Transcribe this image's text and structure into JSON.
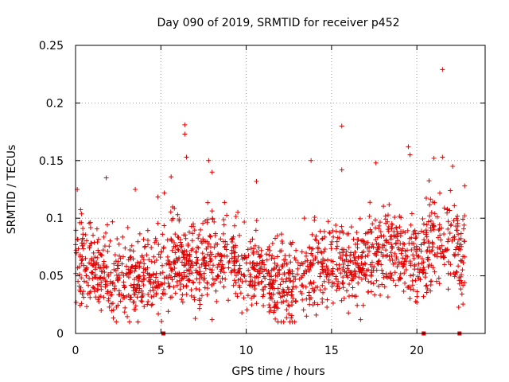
{
  "chart_data": {
    "type": "scatter",
    "title": "Day 090 of 2019, SRMTID for receiver p452",
    "xlabel": "GPS time / hours",
    "ylabel": "SRMTID / TECUs",
    "xlim": [
      0,
      24
    ],
    "ylim": [
      0,
      0.25
    ],
    "xticks": [
      0,
      5,
      10,
      15,
      20
    ],
    "xtick_labels": [
      "0",
      "5",
      "10",
      "15",
      "20"
    ],
    "yticks": [
      0,
      0.05,
      0.1,
      0.15,
      0.2,
      0.25
    ],
    "ytick_labels": [
      "0",
      "0.05",
      "0.1",
      "0.15",
      "0.2",
      "0.25"
    ],
    "grid": true,
    "marker": "+",
    "series_color": "#e00000",
    "gap_markers_x": [
      5.15,
      20.4,
      22.5
    ],
    "trend": [
      {
        "x": 0.0,
        "y": 0.062
      },
      {
        "x": 1.0,
        "y": 0.058
      },
      {
        "x": 2.0,
        "y": 0.05
      },
      {
        "x": 3.0,
        "y": 0.047
      },
      {
        "x": 4.0,
        "y": 0.05
      },
      {
        "x": 5.0,
        "y": 0.053
      },
      {
        "x": 6.0,
        "y": 0.065
      },
      {
        "x": 7.0,
        "y": 0.055
      },
      {
        "x": 8.0,
        "y": 0.063
      },
      {
        "x": 9.0,
        "y": 0.068
      },
      {
        "x": 10.0,
        "y": 0.057
      },
      {
        "x": 11.0,
        "y": 0.05
      },
      {
        "x": 12.0,
        "y": 0.04
      },
      {
        "x": 13.0,
        "y": 0.043
      },
      {
        "x": 14.0,
        "y": 0.057
      },
      {
        "x": 15.0,
        "y": 0.06
      },
      {
        "x": 16.0,
        "y": 0.055
      },
      {
        "x": 17.0,
        "y": 0.062
      },
      {
        "x": 18.0,
        "y": 0.072
      },
      {
        "x": 19.0,
        "y": 0.07
      },
      {
        "x": 20.0,
        "y": 0.062
      },
      {
        "x": 21.0,
        "y": 0.08
      },
      {
        "x": 22.0,
        "y": 0.078
      },
      {
        "x": 22.8,
        "y": 0.065
      }
    ],
    "notable_points": [
      {
        "x": 0.1,
        "y": 0.125
      },
      {
        "x": 1.8,
        "y": 0.135
      },
      {
        "x": 3.5,
        "y": 0.125
      },
      {
        "x": 5.6,
        "y": 0.136
      },
      {
        "x": 6.4,
        "y": 0.181
      },
      {
        "x": 6.4,
        "y": 0.173
      },
      {
        "x": 6.5,
        "y": 0.153
      },
      {
        "x": 7.8,
        "y": 0.15
      },
      {
        "x": 8.0,
        "y": 0.14
      },
      {
        "x": 8.0,
        "y": 0.012
      },
      {
        "x": 10.6,
        "y": 0.132
      },
      {
        "x": 13.8,
        "y": 0.15
      },
      {
        "x": 14.1,
        "y": 0.016
      },
      {
        "x": 15.6,
        "y": 0.18
      },
      {
        "x": 15.6,
        "y": 0.142
      },
      {
        "x": 16.7,
        "y": 0.012
      },
      {
        "x": 17.6,
        "y": 0.148
      },
      {
        "x": 19.5,
        "y": 0.162
      },
      {
        "x": 19.6,
        "y": 0.155
      },
      {
        "x": 20.0,
        "y": 0.027
      },
      {
        "x": 21.0,
        "y": 0.152
      },
      {
        "x": 21.5,
        "y": 0.229
      },
      {
        "x": 21.5,
        "y": 0.153
      },
      {
        "x": 22.1,
        "y": 0.145
      },
      {
        "x": 22.8,
        "y": 0.128
      },
      {
        "x": 22.8,
        "y": 0.044
      }
    ],
    "point_count": 1700
  }
}
